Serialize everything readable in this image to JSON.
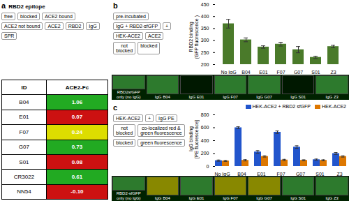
{
  "chart_data": [
    {
      "type": "diagram",
      "title": "RBD2 epitope",
      "annotations": [
        "a",
        "free",
        "blocked",
        "ACE2 bound",
        "ACE2 not bound",
        "ACE2",
        "RBD2",
        "IgG",
        "SPR"
      ]
    },
    {
      "type": "table",
      "annotations": [
        "ID",
        "ACE2-Fc"
      ],
      "categories": [
        "B04",
        "E01",
        "F07",
        "G07",
        "S01",
        "CR3022",
        "NN54"
      ],
      "values": [
        1.06,
        0.07,
        0.24,
        0.73,
        0.08,
        0.61,
        -0.1
      ],
      "value_labels": [
        "1.06",
        "0.07",
        "0.24",
        "0.73",
        "0.08",
        "0.61",
        "-0.10"
      ],
      "colors": [
        "#22aa22",
        "#cc1111",
        "#dddd00",
        "#22aa22",
        "#cc1111",
        "#22aa22",
        "#cc1111"
      ]
    },
    {
      "type": "diagram",
      "annotations": [
        "b",
        "pre-incubated",
        "IgG + RBD2-sfGFP",
        "+",
        "HEK-ACE2",
        "ACE2",
        "not\nblocked",
        "blocked"
      ]
    },
    {
      "type": "bar",
      "categories": [
        "No IgG",
        "B04",
        "E01",
        "F07",
        "G07",
        "S01",
        "Z3"
      ],
      "values": [
        370,
        303,
        273,
        285,
        262,
        230,
        275
      ],
      "errors": [
        18,
        8,
        5,
        8,
        13,
        5,
        5
      ],
      "color": "#4a7a2a",
      "ylabel": "RBD2 binding\n(GFP fluorescence )",
      "ylim": [
        200,
        450
      ],
      "yticks": [
        200,
        250,
        300,
        350,
        400,
        450
      ]
    },
    {
      "type": "strip",
      "categories": [
        "RBD2sfGFP\nonly (no IgG)",
        "IgG B04",
        "IgG E01",
        "IgG F07",
        "IgG G07",
        "IgG S01",
        "IgG Z3"
      ],
      "colors": [
        "#2d7a2d",
        "#2d7a2d",
        "#001800",
        "#2d7a2d",
        "#2d7a2d",
        "#001800",
        "#2d7a2d"
      ]
    },
    {
      "type": "diagram",
      "annotations": [
        "c",
        "HEK-ACE2",
        "+",
        "IgG PE",
        "not\nblocked",
        "co-localized red &\ngreen fluorescence",
        "blocked",
        "green fluorescence"
      ]
    },
    {
      "type": "bar",
      "categories": [
        "No IgG",
        "B04",
        "E01",
        "F07",
        "G07",
        "S01",
        "Z3"
      ],
      "series": [
        {
          "name": "HEK-ACE2 + RBD2 sfGFP",
          "color": "#2255cc",
          "values": [
            90,
            600,
            225,
            530,
            300,
            105,
            200
          ],
          "errors": [
            10,
            15,
            20,
            20,
            20,
            10,
            15
          ]
        },
        {
          "name": "HEK-ACE2",
          "color": "#dd7700",
          "values": [
            85,
            95,
            155,
            100,
            95,
            95,
            155
          ],
          "errors": [
            8,
            10,
            10,
            10,
            8,
            8,
            10
          ]
        }
      ],
      "ylabel": "IgG binding\n[PE fluorescence]",
      "ylim": [
        0,
        800
      ],
      "yticks": [
        0,
        200,
        400,
        600,
        800
      ],
      "legend": "upper right"
    },
    {
      "type": "strip",
      "categories": [
        "RBD2-sfGFP\nonly (no IgG)",
        "IgG B04",
        "IgG E01",
        "IgG F07",
        "IgG G07",
        "IgG S01",
        "IgG Z3"
      ],
      "colors": [
        "#2d7a2d",
        "#888800",
        "#2d7a2d",
        "#888800",
        "#888800",
        "#2d7a2d",
        "#2d7a2d"
      ]
    }
  ]
}
